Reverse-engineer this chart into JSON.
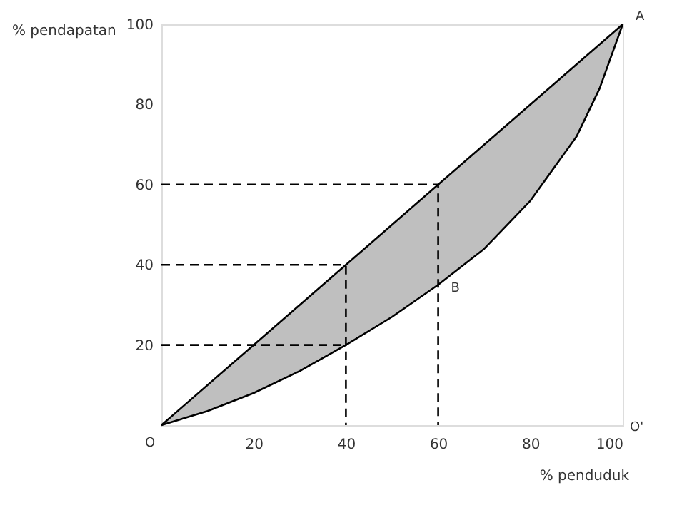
{
  "chart_data": {
    "type": "line",
    "xlabel": "% penduduk",
    "ylabel": "% pendapatan",
    "xlim": [
      0,
      100
    ],
    "ylim": [
      0,
      100
    ],
    "xticks": [
      20,
      40,
      60,
      80,
      100
    ],
    "yticks": [
      20,
      40,
      60,
      80,
      100
    ],
    "grid": false,
    "marker": "none",
    "series": [
      {
        "x": [
          0,
          10,
          20,
          30,
          40,
          50,
          60,
          70,
          80,
          90,
          95,
          100
        ],
        "values": [
          0,
          3.5,
          8,
          13.5,
          20,
          27,
          35,
          44,
          56,
          72,
          84,
          100
        ],
        "lower": [
          0,
          3.5,
          8,
          13.5,
          20,
          27,
          35,
          44,
          56,
          72,
          84,
          100
        ],
        "upper": [
          0,
          10,
          20,
          30,
          40,
          50,
          60,
          70,
          80,
          90,
          95,
          100
        ],
        "color": "#000000",
        "line_style": "solid"
      },
      {
        "x": [
          0,
          100
        ],
        "values": [
          0,
          100
        ],
        "color": "#000000",
        "line_style": "solid"
      },
      {
        "x": [
          0,
          60,
          60
        ],
        "values": [
          60,
          60,
          0
        ],
        "color": "#000000",
        "line_style": "dashed"
      },
      {
        "x": [
          0,
          40,
          40
        ],
        "values": [
          40,
          40,
          0
        ],
        "color": "#000000",
        "line_style": "dashed"
      },
      {
        "x": [
          0,
          40
        ],
        "values": [
          20,
          20
        ],
        "color": "#000000",
        "line_style": "dashed"
      }
    ],
    "annotations": [
      {
        "text": "O",
        "x": 0,
        "y": 0
      },
      {
        "text": "A",
        "x": 100,
        "y": 100
      },
      {
        "text": "B",
        "x": 60,
        "y": 35
      },
      "O'"
    ]
  }
}
